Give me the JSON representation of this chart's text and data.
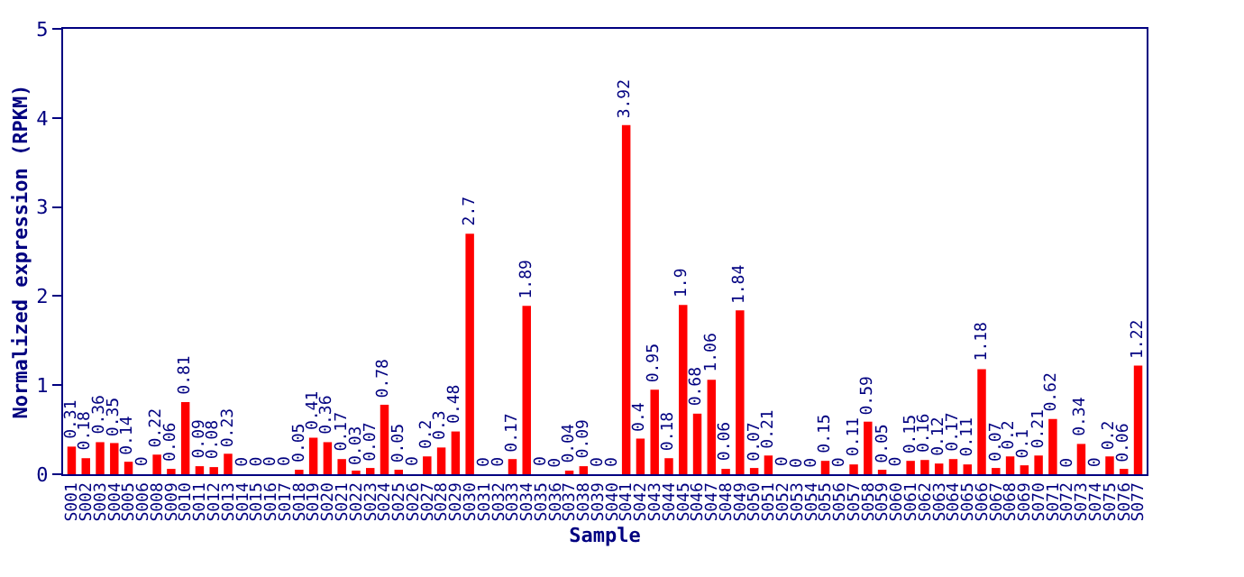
{
  "chart_data": {
    "type": "bar",
    "xlabel": "Sample",
    "ylabel": "Normalized expression (RPKM)",
    "categories": [
      "S001",
      "S002",
      "S003",
      "S004",
      "S005",
      "S006",
      "S008",
      "S009",
      "S010",
      "S011",
      "S012",
      "S013",
      "S014",
      "S015",
      "S016",
      "S017",
      "S018",
      "S019",
      "S020",
      "S021",
      "S022",
      "S023",
      "S024",
      "S025",
      "S026",
      "S027",
      "S028",
      "S029",
      "S030",
      "S031",
      "S032",
      "S033",
      "S034",
      "S035",
      "S036",
      "S037",
      "S038",
      "S039",
      "S040",
      "S041",
      "S042",
      "S043",
      "S044",
      "S045",
      "S046",
      "S047",
      "S048",
      "S049",
      "S050",
      "S051",
      "S052",
      "S053",
      "S054",
      "S055",
      "S056",
      "S057",
      "S058",
      "S059",
      "S060",
      "S061",
      "S062",
      "S063",
      "S064",
      "S065",
      "S066",
      "S067",
      "S068",
      "S069",
      "S070",
      "S071",
      "S072",
      "S073",
      "S074",
      "S075",
      "S076",
      "S077"
    ],
    "values": [
      0.31,
      0.18,
      0.36,
      0.35,
      0.14,
      0,
      0.22,
      0.06,
      0.81,
      0.09,
      0.08,
      0.23,
      0,
      0,
      0,
      0,
      0.05,
      0.41,
      0.36,
      0.17,
      0.03,
      0.07,
      0.78,
      0.05,
      0,
      0.2,
      0.3,
      0.48,
      2.7,
      0,
      0,
      0.17,
      1.89,
      0,
      0,
      0.04,
      0.09,
      0,
      0,
      3.92,
      0.4,
      0.95,
      0.18,
      1.9,
      0.68,
      1.06,
      0.06,
      1.84,
      0.07,
      0.21,
      0,
      0,
      0,
      0.15,
      0,
      0.11,
      0.59,
      0.05,
      0,
      0.15,
      0.16,
      0.12,
      0.17,
      0.11,
      1.18,
      0.07,
      0.2,
      0.1,
      0.21,
      0.62,
      0,
      0.34,
      0,
      0.2,
      0.06,
      1.22
    ],
    "color": "#ff0000",
    "ylim": [
      0,
      5
    ],
    "yticks": [
      0,
      1,
      2,
      3,
      4,
      5
    ],
    "legend": false,
    "data_labels": true
  }
}
